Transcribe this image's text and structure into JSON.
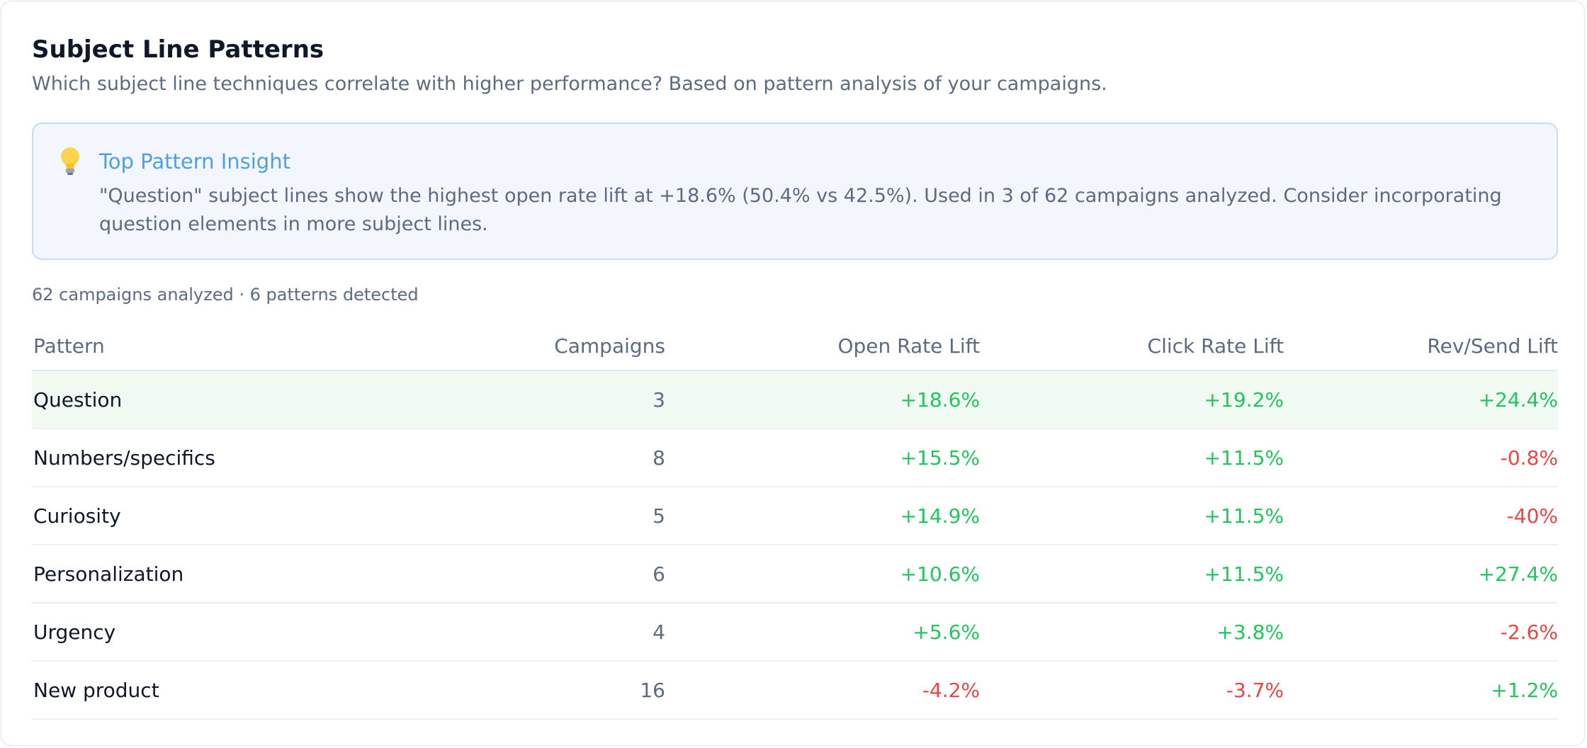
{
  "header": {
    "title": "Subject Line Patterns",
    "subtitle": "Which subject line techniques correlate with higher performance? Based on pattern analysis of your campaigns."
  },
  "insight": {
    "title": "Top Pattern Insight",
    "text": "\"Question\" subject lines show the highest open rate lift at +18.6% (50.4% vs 42.5%). Used in 3 of 62 campaigns analyzed. Consider incorporating question elements in more subject lines."
  },
  "summary": "62 campaigns analyzed · 6 patterns detected",
  "table": {
    "columns": [
      "Pattern",
      "Campaigns",
      "Open Rate Lift",
      "Click Rate Lift",
      "Rev/Send Lift"
    ],
    "rows": [
      [
        "Question",
        "3",
        "+18.6%",
        "+19.2%",
        "+24.4%"
      ],
      [
        "Numbers/specifics",
        "8",
        "+15.5%",
        "+11.5%",
        "-0.8%"
      ],
      [
        "Curiosity",
        "5",
        "+14.9%",
        "+11.5%",
        "-40%"
      ],
      [
        "Personalization",
        "6",
        "+10.6%",
        "+11.5%",
        "+27.4%"
      ],
      [
        "Urgency",
        "4",
        "+5.6%",
        "+3.8%",
        "-2.6%"
      ],
      [
        "New product",
        "16",
        "-4.2%",
        "-3.7%",
        "+1.2%"
      ]
    ]
  }
}
